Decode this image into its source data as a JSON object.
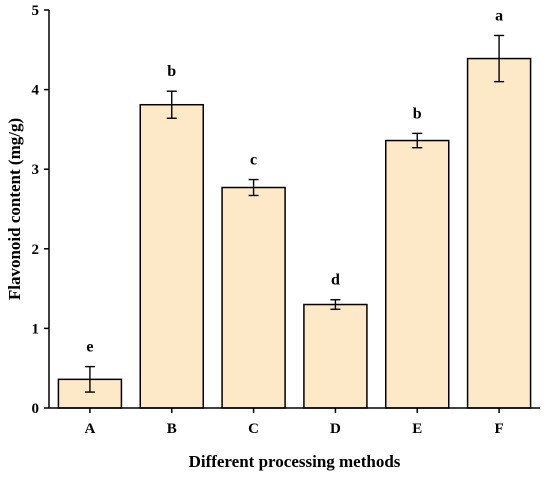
{
  "chart_data": {
    "type": "bar",
    "title": "",
    "xlabel": "Different processing methods",
    "ylabel": "Flavonoid content (mg/g)",
    "categories": [
      "A",
      "B",
      "C",
      "D",
      "E",
      "F"
    ],
    "values": [
      0.36,
      3.81,
      2.77,
      1.3,
      3.36,
      4.39
    ],
    "errors": [
      0.16,
      0.17,
      0.1,
      0.06,
      0.09,
      0.29
    ],
    "significance_letters": [
      "e",
      "b",
      "c",
      "d",
      "b",
      "a"
    ],
    "ylim": [
      0,
      5
    ],
    "yticks": [
      0,
      1,
      2,
      3,
      4,
      5
    ],
    "ytick_labels": [
      "0",
      "1",
      "2",
      "3",
      "4",
      "5"
    ],
    "grid": false,
    "legend": "none",
    "colors": {
      "bar_fill": "#fde8c8",
      "bar_edge": "#000000",
      "axis": "#000000",
      "background": "#ffffff"
    }
  }
}
